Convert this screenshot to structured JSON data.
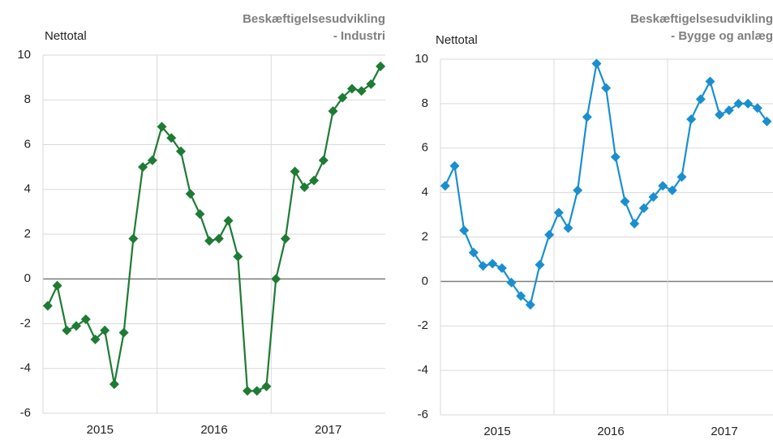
{
  "chart_data": [
    {
      "type": "line",
      "title": [
        "Beskæftigelsesudvikling",
        "- Industri"
      ],
      "ylabel": "Nettotal",
      "x_groups": [
        "2015",
        "2016",
        "2017"
      ],
      "categories": [
        null,
        null,
        null,
        null,
        null,
        null,
        null,
        null,
        null,
        null,
        null,
        null,
        null,
        null,
        null,
        null,
        null,
        null,
        null,
        null,
        null,
        null,
        null,
        null,
        null,
        null,
        null,
        null,
        null,
        null,
        null,
        null,
        null,
        null,
        null,
        null
      ],
      "series": [
        {
          "name": null,
          "color": "#1e7b34",
          "values": [
            -1.2,
            -0.3,
            -2.3,
            -2.1,
            -1.8,
            -2.7,
            -2.3,
            -4.7,
            -2.4,
            1.8,
            5.0,
            5.3,
            6.8,
            6.3,
            5.7,
            3.8,
            2.9,
            1.7,
            1.8,
            2.6,
            1.0,
            -5.0,
            -5.0,
            -4.8,
            0.0,
            1.8,
            4.8,
            4.1,
            4.4,
            5.3,
            7.5,
            8.1,
            8.5,
            8.4,
            8.7,
            9.5
          ]
        }
      ],
      "ylim": [
        -6,
        10
      ],
      "yticks": [
        -6,
        -4,
        -2,
        0,
        2,
        4,
        6,
        8,
        10
      ],
      "grid": true
    },
    {
      "type": "line",
      "title": [
        "Beskæftigelsesudvikling",
        "- Bygge og anlæg"
      ],
      "ylabel": "Nettotal",
      "x_groups": [
        "2015",
        "2016",
        "2017"
      ],
      "categories": [
        null,
        null,
        null,
        null,
        null,
        null,
        null,
        null,
        null,
        null,
        null,
        null,
        null,
        null,
        null,
        null,
        null,
        null,
        null,
        null,
        null,
        null,
        null,
        null,
        null,
        null,
        null,
        null,
        null,
        null,
        null,
        null,
        null,
        null,
        null,
        null
      ],
      "series": [
        {
          "name": null,
          "color": "#1a8fd0",
          "values": [
            4.3,
            5.2,
            2.3,
            1.3,
            0.7,
            0.8,
            0.6,
            -0.05,
            -0.65,
            -1.05,
            0.75,
            2.1,
            3.1,
            2.4,
            4.1,
            7.4,
            9.8,
            8.7,
            5.6,
            3.6,
            2.6,
            3.3,
            3.8,
            4.3,
            4.1,
            4.7,
            7.3,
            8.2,
            9.0,
            7.5,
            7.7,
            8.0,
            8.0,
            7.8,
            7.2,
            null
          ]
        }
      ],
      "ylim": [
        -6,
        10
      ],
      "yticks": [
        -6,
        -4,
        -2,
        0,
        2,
        4,
        6,
        8,
        10
      ],
      "grid": true
    }
  ]
}
